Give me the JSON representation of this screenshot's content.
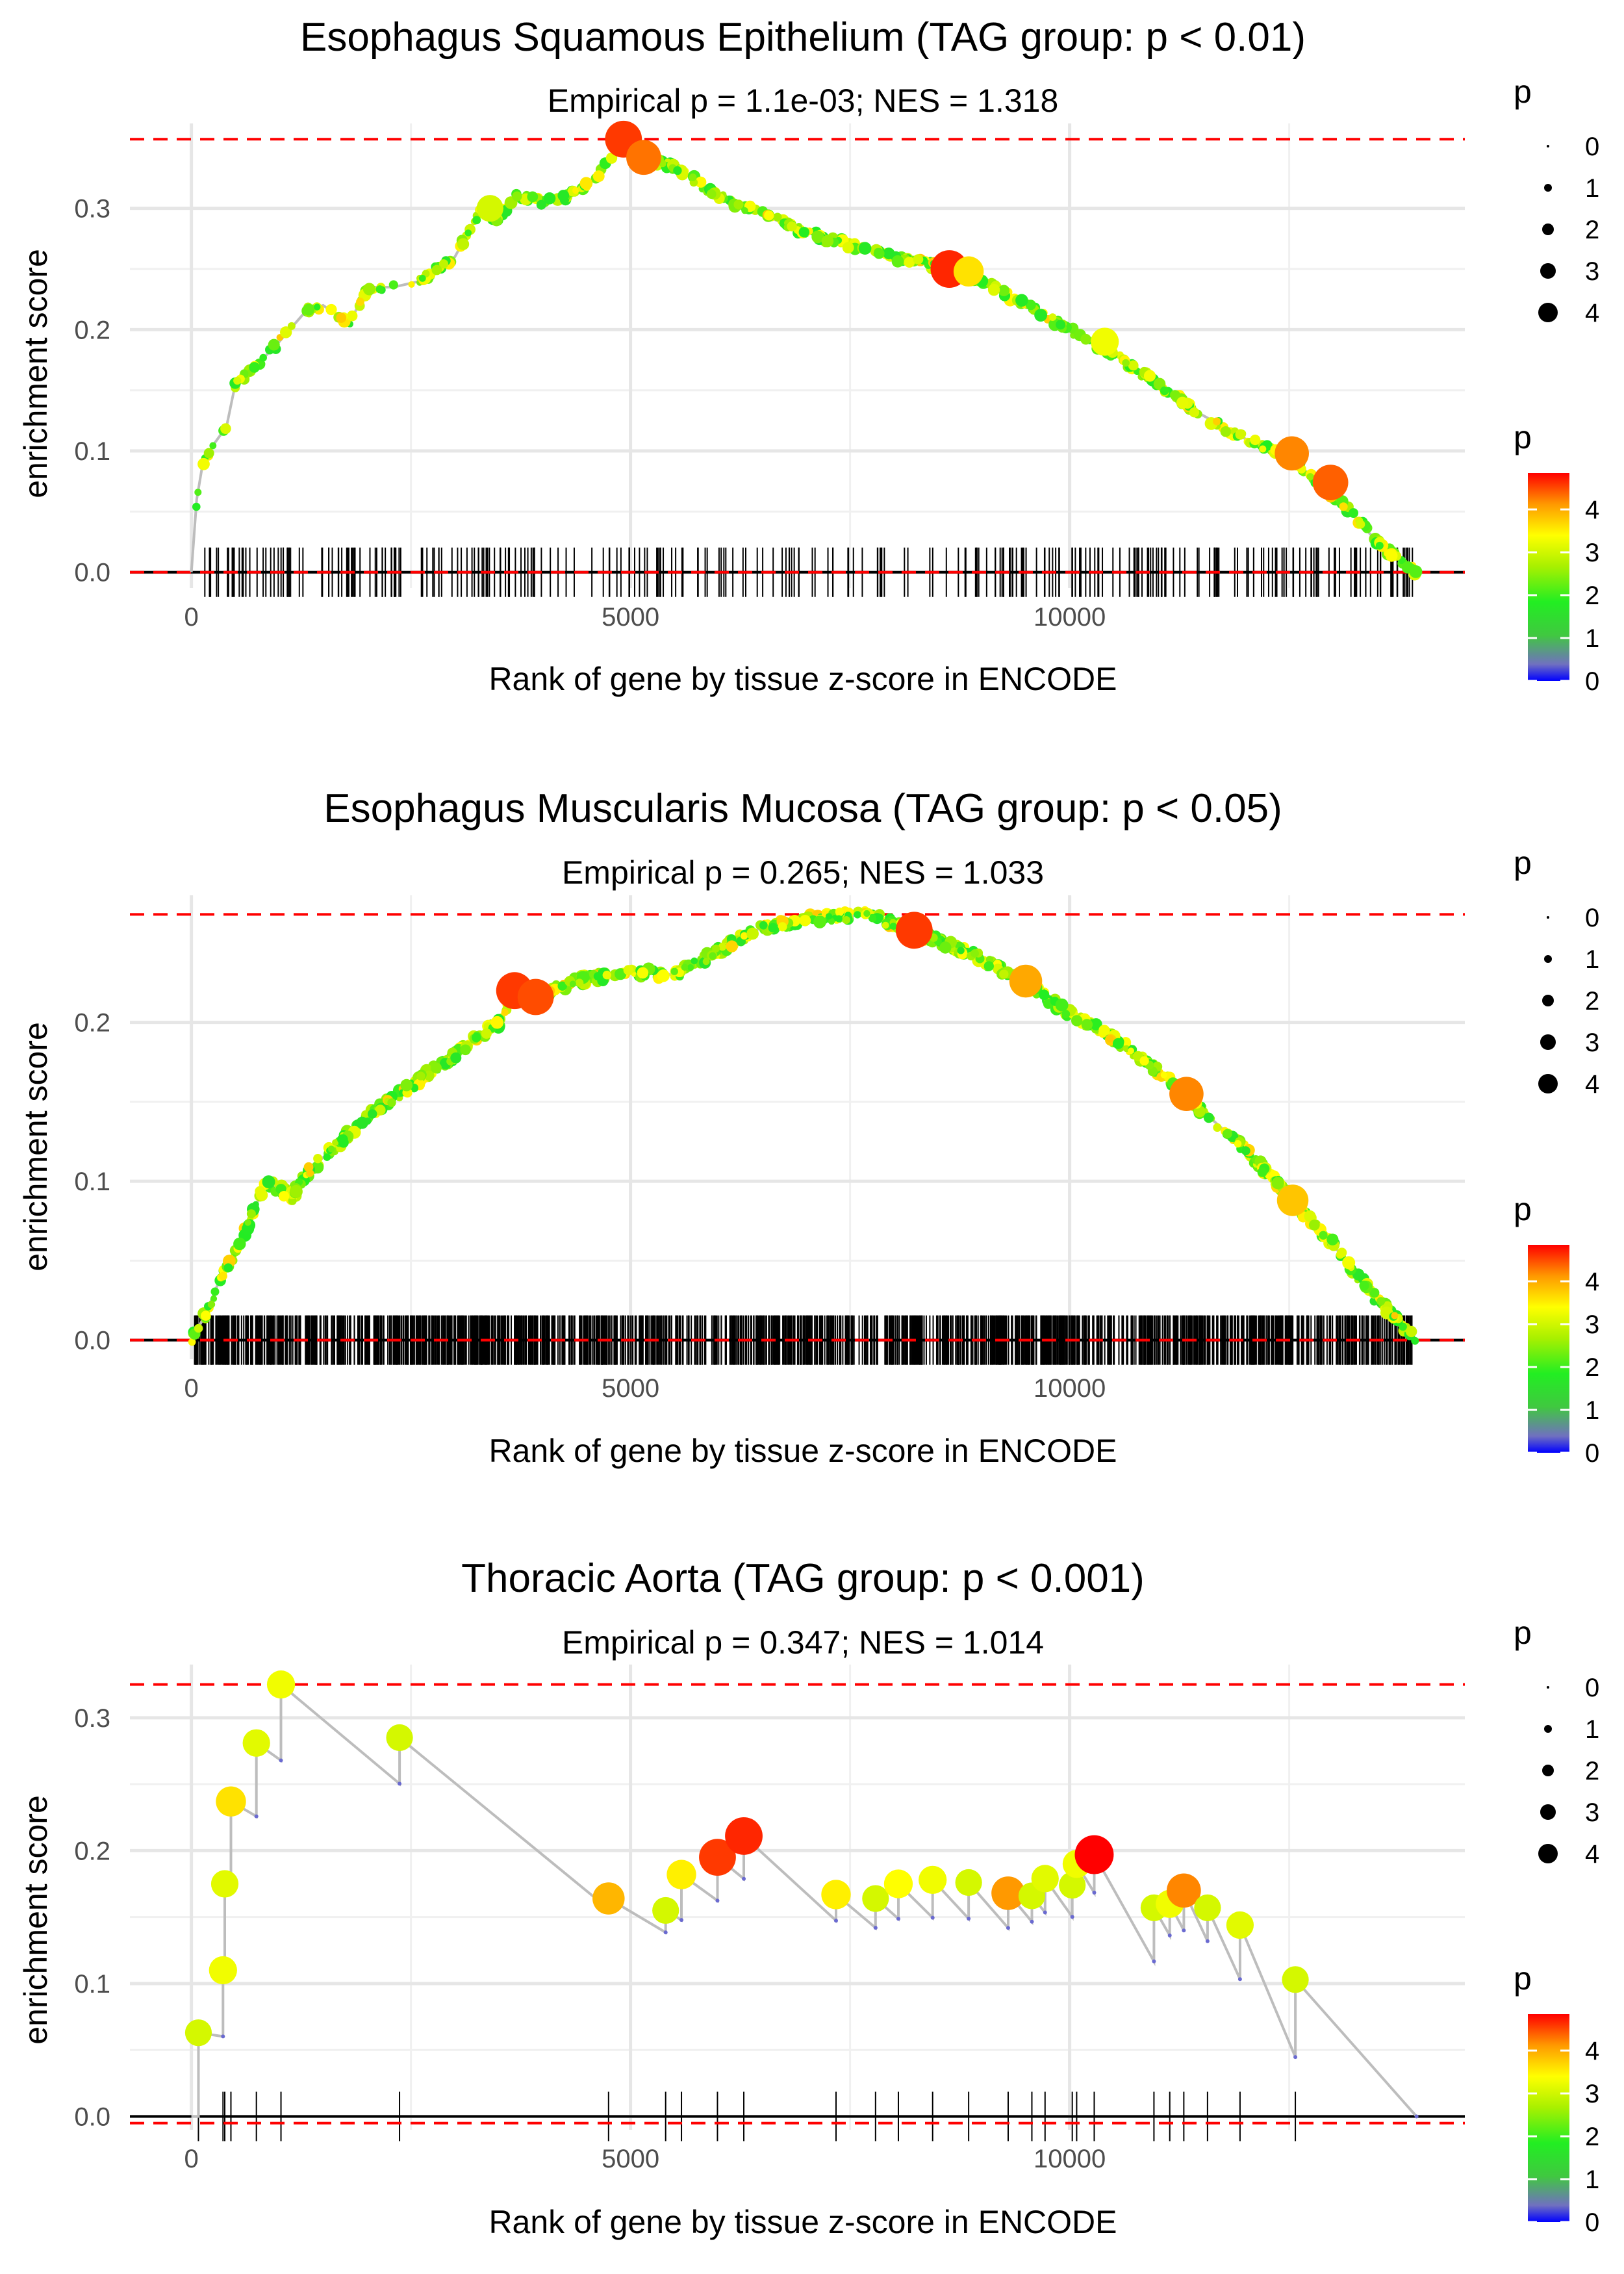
{
  "chart_data": [
    {
      "type": "line",
      "title": "Esophagus Squamous Epithelium (TAG group: p < 0.01)",
      "subtitle": "Empirical p = 1.1e-03; NES = 1.318",
      "xlabel": "Rank of gene by tissue z-score in ENCODE",
      "ylabel": "enrichment score",
      "xlim": [
        -700,
        14500
      ],
      "ylim": [
        -0.013,
        0.37
      ],
      "xticks": [
        0,
        5000,
        10000
      ],
      "xtick_labels": [
        "0",
        "5000",
        "10000"
      ],
      "yticks": [
        0,
        0.1,
        0.2,
        0.3
      ],
      "ytick_labels": [
        "0.0",
        "0.1",
        "0.2",
        "0.3"
      ],
      "max_es": 0.357,
      "min_es": 0.0,
      "n_hits": 300,
      "curve": [
        [
          0,
          0
        ],
        [
          60,
          0.06
        ],
        [
          130,
          0.09
        ],
        [
          250,
          0.105
        ],
        [
          400,
          0.12
        ],
        [
          500,
          0.155
        ],
        [
          650,
          0.165
        ],
        [
          800,
          0.175
        ],
        [
          1000,
          0.19
        ],
        [
          1300,
          0.215
        ],
        [
          1500,
          0.22
        ],
        [
          1800,
          0.205
        ],
        [
          2000,
          0.235
        ],
        [
          2300,
          0.235
        ],
        [
          2600,
          0.24
        ],
        [
          3000,
          0.26
        ],
        [
          3300,
          0.3
        ],
        [
          3500,
          0.29
        ],
        [
          3700,
          0.31
        ],
        [
          4000,
          0.305
        ],
        [
          4300,
          0.31
        ],
        [
          4600,
          0.325
        ],
        [
          4920,
          0.357
        ],
        [
          5200,
          0.34
        ],
        [
          5500,
          0.335
        ],
        [
          6000,
          0.31
        ],
        [
          6500,
          0.295
        ],
        [
          7000,
          0.28
        ],
        [
          7500,
          0.27
        ],
        [
          8000,
          0.26
        ],
        [
          8600,
          0.25
        ],
        [
          9000,
          0.24
        ],
        [
          9500,
          0.22
        ],
        [
          10000,
          0.2
        ],
        [
          10500,
          0.18
        ],
        [
          11000,
          0.155
        ],
        [
          11500,
          0.13
        ],
        [
          12000,
          0.11
        ],
        [
          12500,
          0.095
        ],
        [
          12900,
          0.07
        ],
        [
          13200,
          0.05
        ],
        [
          13500,
          0.025
        ],
        [
          13950,
          0.0
        ]
      ],
      "highlight_points": [
        {
          "x": 4920,
          "y": 0.357,
          "p": 4.5
        },
        {
          "x": 5150,
          "y": 0.342,
          "p": 4.2
        },
        {
          "x": 8630,
          "y": 0.25,
          "p": 4.6
        },
        {
          "x": 12530,
          "y": 0.098,
          "p": 4.1
        },
        {
          "x": 12970,
          "y": 0.074,
          "p": 4.3
        },
        {
          "x": 3400,
          "y": 0.3,
          "p": 3.0
        },
        {
          "x": 8850,
          "y": 0.248,
          "p": 3.5
        },
        {
          "x": 10400,
          "y": 0.19,
          "p": 3.2
        }
      ],
      "legend_size": {
        "title": "p",
        "labels": [
          "0",
          "1",
          "2",
          "3",
          "4"
        ]
      },
      "legend_color": {
        "title": "p",
        "labels": [
          "4",
          "3",
          "2",
          "1",
          "0"
        ]
      }
    },
    {
      "type": "line",
      "title": "Esophagus Muscularis Mucosa (TAG group: p < 0.05)",
      "subtitle": "Empirical p = 0.265; NES = 1.033",
      "xlabel": "Rank of gene by tissue z-score in ENCODE",
      "ylabel": "enrichment score",
      "xlim": [
        -700,
        14500
      ],
      "ylim": [
        -0.012,
        0.28
      ],
      "xticks": [
        0,
        5000,
        10000
      ],
      "xtick_labels": [
        "0",
        "5000",
        "10000"
      ],
      "yticks": [
        0,
        0.1,
        0.2
      ],
      "ytick_labels": [
        "0.0",
        "0.1",
        "0.2"
      ],
      "max_es": 0.268,
      "min_es": 0.0,
      "n_hits": 1400,
      "curve": [
        [
          0,
          0
        ],
        [
          150,
          0.015
        ],
        [
          300,
          0.035
        ],
        [
          500,
          0.055
        ],
        [
          700,
          0.08
        ],
        [
          850,
          0.1
        ],
        [
          1000,
          0.095
        ],
        [
          1150,
          0.09
        ],
        [
          1300,
          0.105
        ],
        [
          1600,
          0.12
        ],
        [
          2000,
          0.14
        ],
        [
          2500,
          0.16
        ],
        [
          3000,
          0.18
        ],
        [
          3500,
          0.2
        ],
        [
          3700,
          0.22
        ],
        [
          3900,
          0.215
        ],
        [
          4300,
          0.225
        ],
        [
          5000,
          0.232
        ],
        [
          5500,
          0.23
        ],
        [
          6000,
          0.245
        ],
        [
          6500,
          0.26
        ],
        [
          7000,
          0.265
        ],
        [
          7700,
          0.268
        ],
        [
          8200,
          0.258
        ],
        [
          9000,
          0.24
        ],
        [
          9500,
          0.225
        ],
        [
          10000,
          0.205
        ],
        [
          10500,
          0.19
        ],
        [
          11000,
          0.17
        ],
        [
          11500,
          0.145
        ],
        [
          12000,
          0.12
        ],
        [
          12500,
          0.09
        ],
        [
          13000,
          0.06
        ],
        [
          13500,
          0.025
        ],
        [
          13950,
          0.0
        ]
      ],
      "highlight_points": [
        {
          "x": 3680,
          "y": 0.22,
          "p": 4.5
        },
        {
          "x": 3920,
          "y": 0.216,
          "p": 4.4
        },
        {
          "x": 8230,
          "y": 0.258,
          "p": 4.5
        },
        {
          "x": 9500,
          "y": 0.226,
          "p": 3.9
        },
        {
          "x": 11330,
          "y": 0.155,
          "p": 4.1
        },
        {
          "x": 12540,
          "y": 0.088,
          "p": 3.7
        }
      ],
      "legend_size": {
        "title": "p",
        "labels": [
          "0",
          "1",
          "2",
          "3",
          "4"
        ]
      },
      "legend_color": {
        "title": "p",
        "labels": [
          "4",
          "3",
          "2",
          "1",
          "0"
        ]
      }
    },
    {
      "type": "line",
      "title": "Thoracic Aorta (TAG group: p < 0.001)",
      "subtitle": "Empirical p = 0.347; NES = 1.014",
      "xlabel": "Rank of gene by tissue z-score in ENCODE",
      "ylabel": "enrichment score",
      "xlim": [
        -700,
        14500
      ],
      "ylim": [
        -0.01,
        0.34
      ],
      "xticks": [
        0,
        5000,
        10000
      ],
      "xtick_labels": [
        "0",
        "5000",
        "10000"
      ],
      "yticks": [
        0,
        0.1,
        0.2,
        0.3
      ],
      "ytick_labels": [
        "0.0",
        "0.1",
        "0.2",
        "0.3"
      ],
      "max_es": 0.325,
      "min_es": -0.005,
      "hits": [
        {
          "x": 80,
          "y": 0.063,
          "p": 3.0
        },
        {
          "x": 360,
          "y": 0.11,
          "p": 3.2
        },
        {
          "x": 380,
          "y": 0.175,
          "p": 3.1
        },
        {
          "x": 450,
          "y": 0.237,
          "p": 3.5
        },
        {
          "x": 740,
          "y": 0.281,
          "p": 3.1
        },
        {
          "x": 1020,
          "y": 0.325,
          "p": 3.2
        },
        {
          "x": 2370,
          "y": 0.285,
          "p": 3.0
        },
        {
          "x": 4750,
          "y": 0.164,
          "p": 3.8
        },
        {
          "x": 5400,
          "y": 0.155,
          "p": 3.0
        },
        {
          "x": 5580,
          "y": 0.182,
          "p": 3.4
        },
        {
          "x": 5990,
          "y": 0.195,
          "p": 4.5
        },
        {
          "x": 6290,
          "y": 0.211,
          "p": 4.6
        },
        {
          "x": 7340,
          "y": 0.167,
          "p": 3.4
        },
        {
          "x": 7790,
          "y": 0.164,
          "p": 3.0
        },
        {
          "x": 8050,
          "y": 0.175,
          "p": 3.3
        },
        {
          "x": 8440,
          "y": 0.178,
          "p": 3.2
        },
        {
          "x": 8850,
          "y": 0.176,
          "p": 3.0
        },
        {
          "x": 9300,
          "y": 0.168,
          "p": 4.0
        },
        {
          "x": 9570,
          "y": 0.166,
          "p": 3.0
        },
        {
          "x": 9720,
          "y": 0.179,
          "p": 3.1
        },
        {
          "x": 10030,
          "y": 0.174,
          "p": 3.0
        },
        {
          "x": 10080,
          "y": 0.19,
          "p": 3.2
        },
        {
          "x": 10280,
          "y": 0.197,
          "p": 4.8
        },
        {
          "x": 10960,
          "y": 0.157,
          "p": 3.0
        },
        {
          "x": 11140,
          "y": 0.16,
          "p": 3.2
        },
        {
          "x": 11300,
          "y": 0.17,
          "p": 4.1
        },
        {
          "x": 11570,
          "y": 0.157,
          "p": 3.0
        },
        {
          "x": 11940,
          "y": 0.144,
          "p": 3.1
        },
        {
          "x": 12570,
          "y": 0.103,
          "p": 3.0
        }
      ],
      "end": {
        "x": 13950,
        "y": 0.0
      },
      "legend_size": {
        "title": "p",
        "labels": [
          "0",
          "1",
          "2",
          "3",
          "4"
        ]
      },
      "legend_color": {
        "title": "p",
        "labels": [
          "4",
          "3",
          "2",
          "1",
          "0"
        ]
      }
    }
  ]
}
